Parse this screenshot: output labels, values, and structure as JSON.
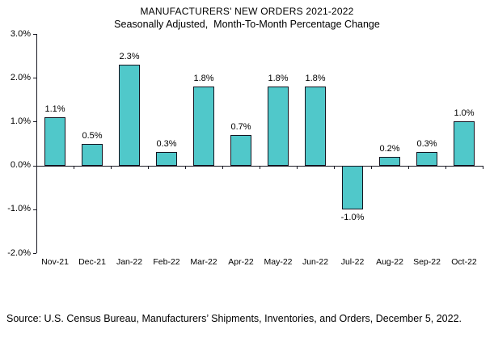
{
  "chart_data": {
    "type": "bar",
    "title": "MANUFACTURERS' NEW ORDERS 2021-2022",
    "subtitle": "Seasonally Adjusted,  Month-To-Month Percentage Change",
    "categories": [
      "Nov-21",
      "Dec-21",
      "Jan-22",
      "Feb-22",
      "Mar-22",
      "Apr-22",
      "May-22",
      "Jun-22",
      "Jul-22",
      "Aug-22",
      "Sep-22",
      "Oct-22"
    ],
    "values": [
      1.1,
      0.5,
      2.3,
      0.3,
      1.8,
      0.7,
      1.8,
      1.8,
      -1.0,
      0.2,
      0.3,
      1.0
    ],
    "data_labels": [
      "1.1%",
      "0.5%",
      "2.3%",
      "0.3%",
      "1.8%",
      "0.7%",
      "1.8%",
      "1.8%",
      "-1.0%",
      "0.2%",
      "0.3%",
      "1.0%"
    ],
    "y_tick_labels": [
      "3.0%",
      "2.0%",
      "1.0%",
      "0.0%",
      "-1.0%",
      "-2.0%"
    ],
    "ylim": [
      -2.0,
      3.0
    ],
    "xlabel": "",
    "ylabel": "",
    "grid": false,
    "legend": false,
    "bar_color": "#50C8CA",
    "bar_border_color": "#141420"
  },
  "source": "Source: U.S. Census Bureau, Manufacturers’ Shipments, Inventories, and Orders, December 5, 2022."
}
